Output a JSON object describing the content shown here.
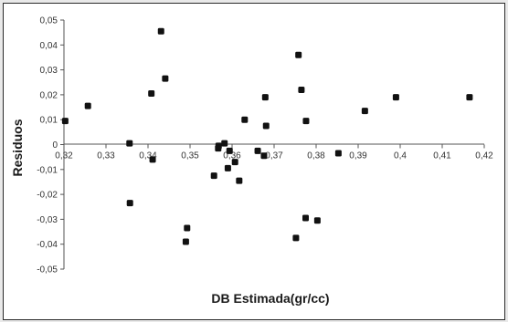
{
  "chart_data": {
    "type": "scatter",
    "title": "",
    "xlabel": "DB Estimada(gr/cc)",
    "ylabel": "Residuos",
    "xlim": [
      0.32,
      0.42
    ],
    "ylim": [
      -0.05,
      0.05
    ],
    "x_ticks": [
      "0,32",
      "0,33",
      "0,34",
      "0,35",
      "0,36",
      "0,37",
      "0,38",
      "0,39",
      "0,4",
      "0,41",
      "0,42"
    ],
    "y_ticks": [
      "0,05",
      "0,04",
      "0,03",
      "0,02",
      "0,01",
      "0",
      "-0,01",
      "-0,02",
      "-0,03",
      "-0,04",
      "-0,05"
    ],
    "grid": false,
    "legend": "none",
    "marker_color": "#111111",
    "series": [
      {
        "x": [
          0.3203,
          0.3257,
          0.3356,
          0.3357,
          0.3408,
          0.3411,
          0.3431,
          0.3441,
          0.349,
          0.3493,
          0.3557,
          0.3567,
          0.3568,
          0.3582,
          0.359,
          0.3594,
          0.3607,
          0.3617,
          0.363,
          0.3661,
          0.3676,
          0.3679,
          0.3681,
          0.3752,
          0.3758,
          0.3765,
          0.3775,
          0.3776,
          0.3803,
          0.3853,
          0.3916,
          0.399,
          0.4165
        ],
        "y": [
          0.0095,
          0.0155,
          0.0005,
          -0.0235,
          0.0205,
          -0.006,
          0.0455,
          0.0265,
          -0.039,
          -0.0335,
          -0.0125,
          -0.0015,
          -0.0005,
          0.0005,
          -0.0095,
          -0.0025,
          -0.007,
          -0.0145,
          0.01,
          -0.0025,
          -0.0045,
          0.019,
          0.0075,
          -0.0375,
          0.036,
          0.022,
          -0.0295,
          0.0095,
          -0.0305,
          -0.0035,
          0.0135,
          0.019,
          0.019
        ]
      }
    ]
  }
}
